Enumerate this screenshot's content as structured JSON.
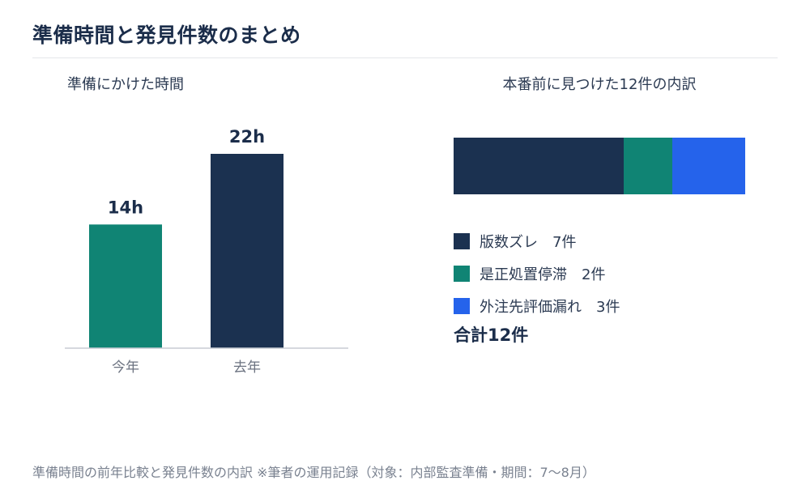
{
  "page": {
    "title": "準備時間と発見件数のまとめ",
    "footnote": "準備時間の前年比較と発見件数の内訳 ※筆者の運用記録（対象：内部監査準備・期間：7〜8月）"
  },
  "colors": {
    "navy": "#1b3150",
    "teal": "#108474",
    "blue": "#2563eb",
    "axis": "#c8ccd3"
  },
  "chart_data": [
    {
      "type": "bar",
      "title": "準備にかけた時間",
      "categories": [
        "今年",
        "去年"
      ],
      "values": [
        14,
        22
      ],
      "data_labels": [
        "14h",
        "22h"
      ],
      "colors": [
        "#108474",
        "#1b3150"
      ],
      "ylim": [
        0,
        22
      ]
    },
    {
      "type": "bar",
      "stacked": true,
      "orientation": "horizontal",
      "title": "本番前に見つけた12件の内訳",
      "series": [
        {
          "name": "版数ズレ",
          "value": 7,
          "label": "版数ズレ　7件",
          "color": "#1b3150"
        },
        {
          "name": "是正処置停滞",
          "value": 2,
          "label": "是正処置停滞　2件",
          "color": "#108474"
        },
        {
          "name": "外注先評価漏れ",
          "value": 3,
          "label": "外注先評価漏れ　3件",
          "color": "#2563eb"
        }
      ],
      "total_label": "合計12件",
      "xlim": [
        0,
        12
      ]
    }
  ]
}
